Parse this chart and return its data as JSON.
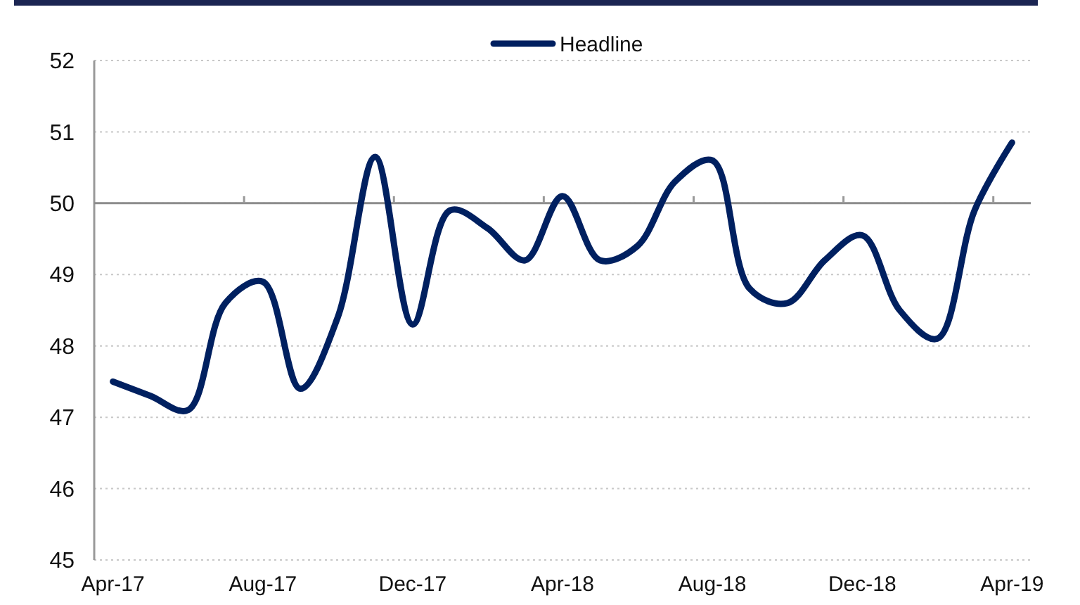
{
  "chart_data": {
    "type": "line",
    "categories": [
      "Apr-17",
      null,
      null,
      null,
      "Aug-17",
      null,
      null,
      null,
      "Dec-17",
      null,
      null,
      null,
      "Apr-18",
      null,
      null,
      null,
      "Aug-18",
      null,
      null,
      null,
      "Dec-18",
      null,
      null,
      null,
      "Apr-19"
    ],
    "series": [
      {
        "name": "Headline",
        "color": "#002060",
        "values": [
          47.5,
          47.3,
          47.1,
          48.6,
          48.9,
          47.4,
          48.4,
          50.65,
          48.3,
          49.9,
          49.65,
          49.2,
          50.1,
          49.2,
          49.4,
          50.3,
          50.6,
          48.8,
          48.6,
          49.2,
          49.55,
          48.5,
          48.1,
          49.9,
          50.85
        ]
      }
    ],
    "ylim": [
      45,
      52
    ],
    "yticks": [
      45,
      46,
      47,
      48,
      49,
      50,
      51,
      52
    ],
    "grid": "y",
    "legend": "top",
    "line_style": "solid",
    "ref_lines": [
      {
        "axis": "y",
        "value": 50,
        "color": "#8c8c8c"
      }
    ]
  }
}
